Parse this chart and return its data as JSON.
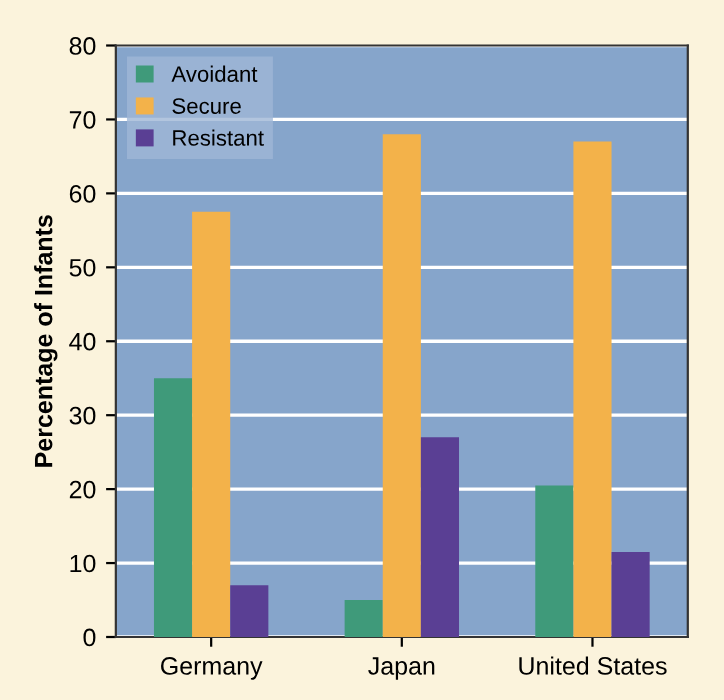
{
  "chart_data": {
    "type": "bar",
    "ylabel": "Percentage of Infants",
    "categories": [
      "Germany",
      "Japan",
      "United States"
    ],
    "series": [
      {
        "name": "Avoidant",
        "color": "#3f9a7a",
        "values": [
          35,
          5,
          20.5
        ]
      },
      {
        "name": "Secure",
        "color": "#f3b24a",
        "values": [
          57.5,
          68,
          67
        ]
      },
      {
        "name": "Resistant",
        "color": "#5a3f94",
        "values": [
          7,
          27,
          11.5
        ]
      }
    ],
    "ylim": [
      0,
      80
    ],
    "yticks": [
      0,
      10,
      20,
      30,
      40,
      50,
      60,
      70,
      80
    ],
    "grid": "y",
    "legend": "top left"
  }
}
